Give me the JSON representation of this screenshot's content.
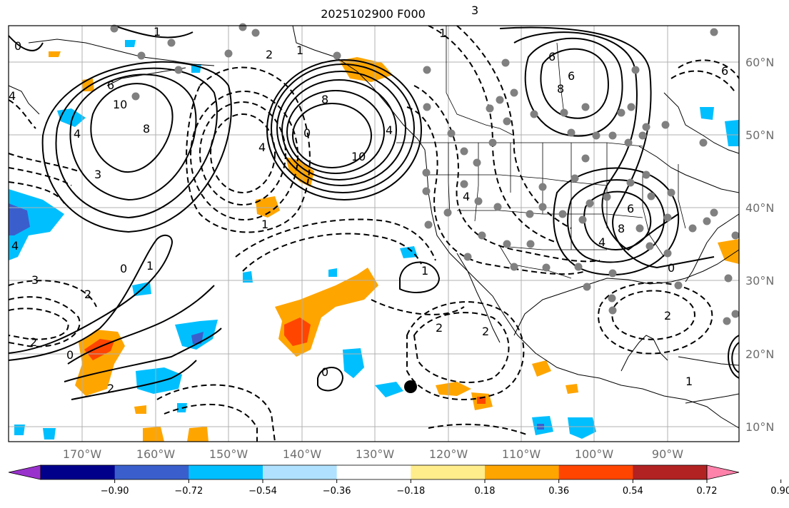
{
  "title": "2025102900 F000",
  "lon_labels": [
    "170°W",
    "160°W",
    "150°W",
    "140°W",
    "130°W",
    "120°W",
    "110°W",
    "100°W",
    "90°W"
  ],
  "lat_labels": [
    "60°N",
    "50°N",
    "40°N",
    "30°N",
    "20°N",
    "10°N"
  ],
  "colorbar": {
    "ticks": [
      "−0.90",
      "−0.72",
      "−0.54",
      "−0.36",
      "−0.18",
      "0.18",
      "0.36",
      "0.54",
      "0.72",
      "0.90"
    ],
    "colors": [
      "#9932cc",
      "#00008b",
      "#3a5fcd",
      "#00bfff",
      "#b0e2ff",
      "#ffffff",
      "#ffec8b",
      "#ffa500",
      "#ff4500",
      "#b22222",
      "#ff82ab"
    ]
  },
  "contour_labels": [
    "6",
    "10",
    "8",
    "3",
    "4",
    "4",
    "2",
    "0",
    "1",
    "1",
    "4",
    "0",
    "8",
    "10",
    "4",
    "6",
    "1",
    "3",
    "6",
    "8",
    "6",
    "8",
    "4",
    "0",
    "4",
    "2",
    "3",
    "2",
    "0",
    "2",
    "1",
    "2",
    "0",
    "1",
    "2",
    "2",
    "1",
    "4",
    "1",
    "0",
    "6"
  ],
  "colors": {
    "positive_anomaly": "#ffa500",
    "strong_positive": "#ff4500",
    "negative_anomaly": "#00bfff",
    "strong_negative": "#3a5fcd",
    "station_dot": "#808080"
  }
}
